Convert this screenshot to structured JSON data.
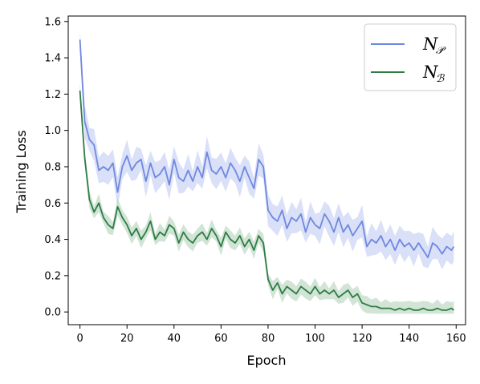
{
  "chart_data": {
    "type": "line",
    "title": "",
    "xlabel": "Epoch",
    "ylabel": "Training Loss",
    "xlim": [
      -5,
      164
    ],
    "ylim": [
      -0.07,
      1.63
    ],
    "xticks": [
      "0",
      "20",
      "40",
      "60",
      "80",
      "100",
      "120",
      "140",
      "160"
    ],
    "yticks": [
      "0.0",
      "0.2",
      "0.4",
      "0.6",
      "0.8",
      "1.0",
      "1.2",
      "1.4",
      "1.6"
    ],
    "grid": false,
    "legend_position": "top-right",
    "legend": [
      {
        "main": "N",
        "sub": "𝒫",
        "color": "#6f88e0"
      },
      {
        "main": "N",
        "sub": "ℬ",
        "color": "#2e7d44"
      }
    ],
    "x": [
      0,
      2,
      4,
      6,
      8,
      10,
      12,
      14,
      16,
      18,
      20,
      22,
      24,
      26,
      28,
      30,
      32,
      34,
      36,
      38,
      40,
      42,
      44,
      46,
      48,
      50,
      52,
      54,
      56,
      58,
      60,
      62,
      64,
      66,
      68,
      70,
      72,
      74,
      76,
      78,
      80,
      82,
      84,
      86,
      88,
      90,
      92,
      94,
      96,
      98,
      100,
      102,
      104,
      106,
      108,
      110,
      112,
      114,
      116,
      118,
      120,
      122,
      124,
      126,
      128,
      130,
      132,
      134,
      136,
      138,
      140,
      142,
      144,
      146,
      148,
      150,
      152,
      154,
      156,
      158,
      159
    ],
    "series": [
      {
        "name": "N𝒫",
        "color": "#6f88e0",
        "band_color": "#c5cff3",
        "values": [
          1.5,
          1.05,
          0.95,
          0.92,
          0.78,
          0.8,
          0.78,
          0.82,
          0.66,
          0.8,
          0.86,
          0.78,
          0.82,
          0.84,
          0.72,
          0.82,
          0.74,
          0.76,
          0.8,
          0.7,
          0.84,
          0.74,
          0.72,
          0.78,
          0.72,
          0.8,
          0.74,
          0.88,
          0.78,
          0.76,
          0.8,
          0.74,
          0.82,
          0.78,
          0.72,
          0.8,
          0.74,
          0.68,
          0.84,
          0.8,
          0.56,
          0.52,
          0.5,
          0.56,
          0.46,
          0.52,
          0.5,
          0.54,
          0.44,
          0.52,
          0.48,
          0.46,
          0.54,
          0.5,
          0.44,
          0.52,
          0.44,
          0.48,
          0.42,
          0.46,
          0.5,
          0.36,
          0.4,
          0.38,
          0.42,
          0.36,
          0.4,
          0.34,
          0.4,
          0.36,
          0.38,
          0.34,
          0.38,
          0.34,
          0.3,
          0.38,
          0.36,
          0.32,
          0.36,
          0.34,
          0.36
        ]
      },
      {
        "name": "Nℬ",
        "color": "#2e7d44",
        "band_color": "#b8d6c0",
        "values": [
          1.22,
          0.85,
          0.62,
          0.55,
          0.6,
          0.52,
          0.48,
          0.46,
          0.58,
          0.52,
          0.48,
          0.42,
          0.46,
          0.4,
          0.44,
          0.5,
          0.4,
          0.44,
          0.42,
          0.48,
          0.46,
          0.38,
          0.44,
          0.4,
          0.38,
          0.42,
          0.44,
          0.4,
          0.46,
          0.42,
          0.36,
          0.44,
          0.4,
          0.38,
          0.42,
          0.36,
          0.4,
          0.34,
          0.42,
          0.38,
          0.18,
          0.12,
          0.16,
          0.1,
          0.14,
          0.12,
          0.1,
          0.14,
          0.12,
          0.1,
          0.14,
          0.1,
          0.12,
          0.1,
          0.12,
          0.08,
          0.1,
          0.12,
          0.08,
          0.1,
          0.05,
          0.04,
          0.03,
          0.03,
          0.02,
          0.02,
          0.02,
          0.01,
          0.02,
          0.01,
          0.02,
          0.01,
          0.01,
          0.02,
          0.01,
          0.01,
          0.02,
          0.01,
          0.01,
          0.02,
          0.01
        ]
      }
    ]
  }
}
